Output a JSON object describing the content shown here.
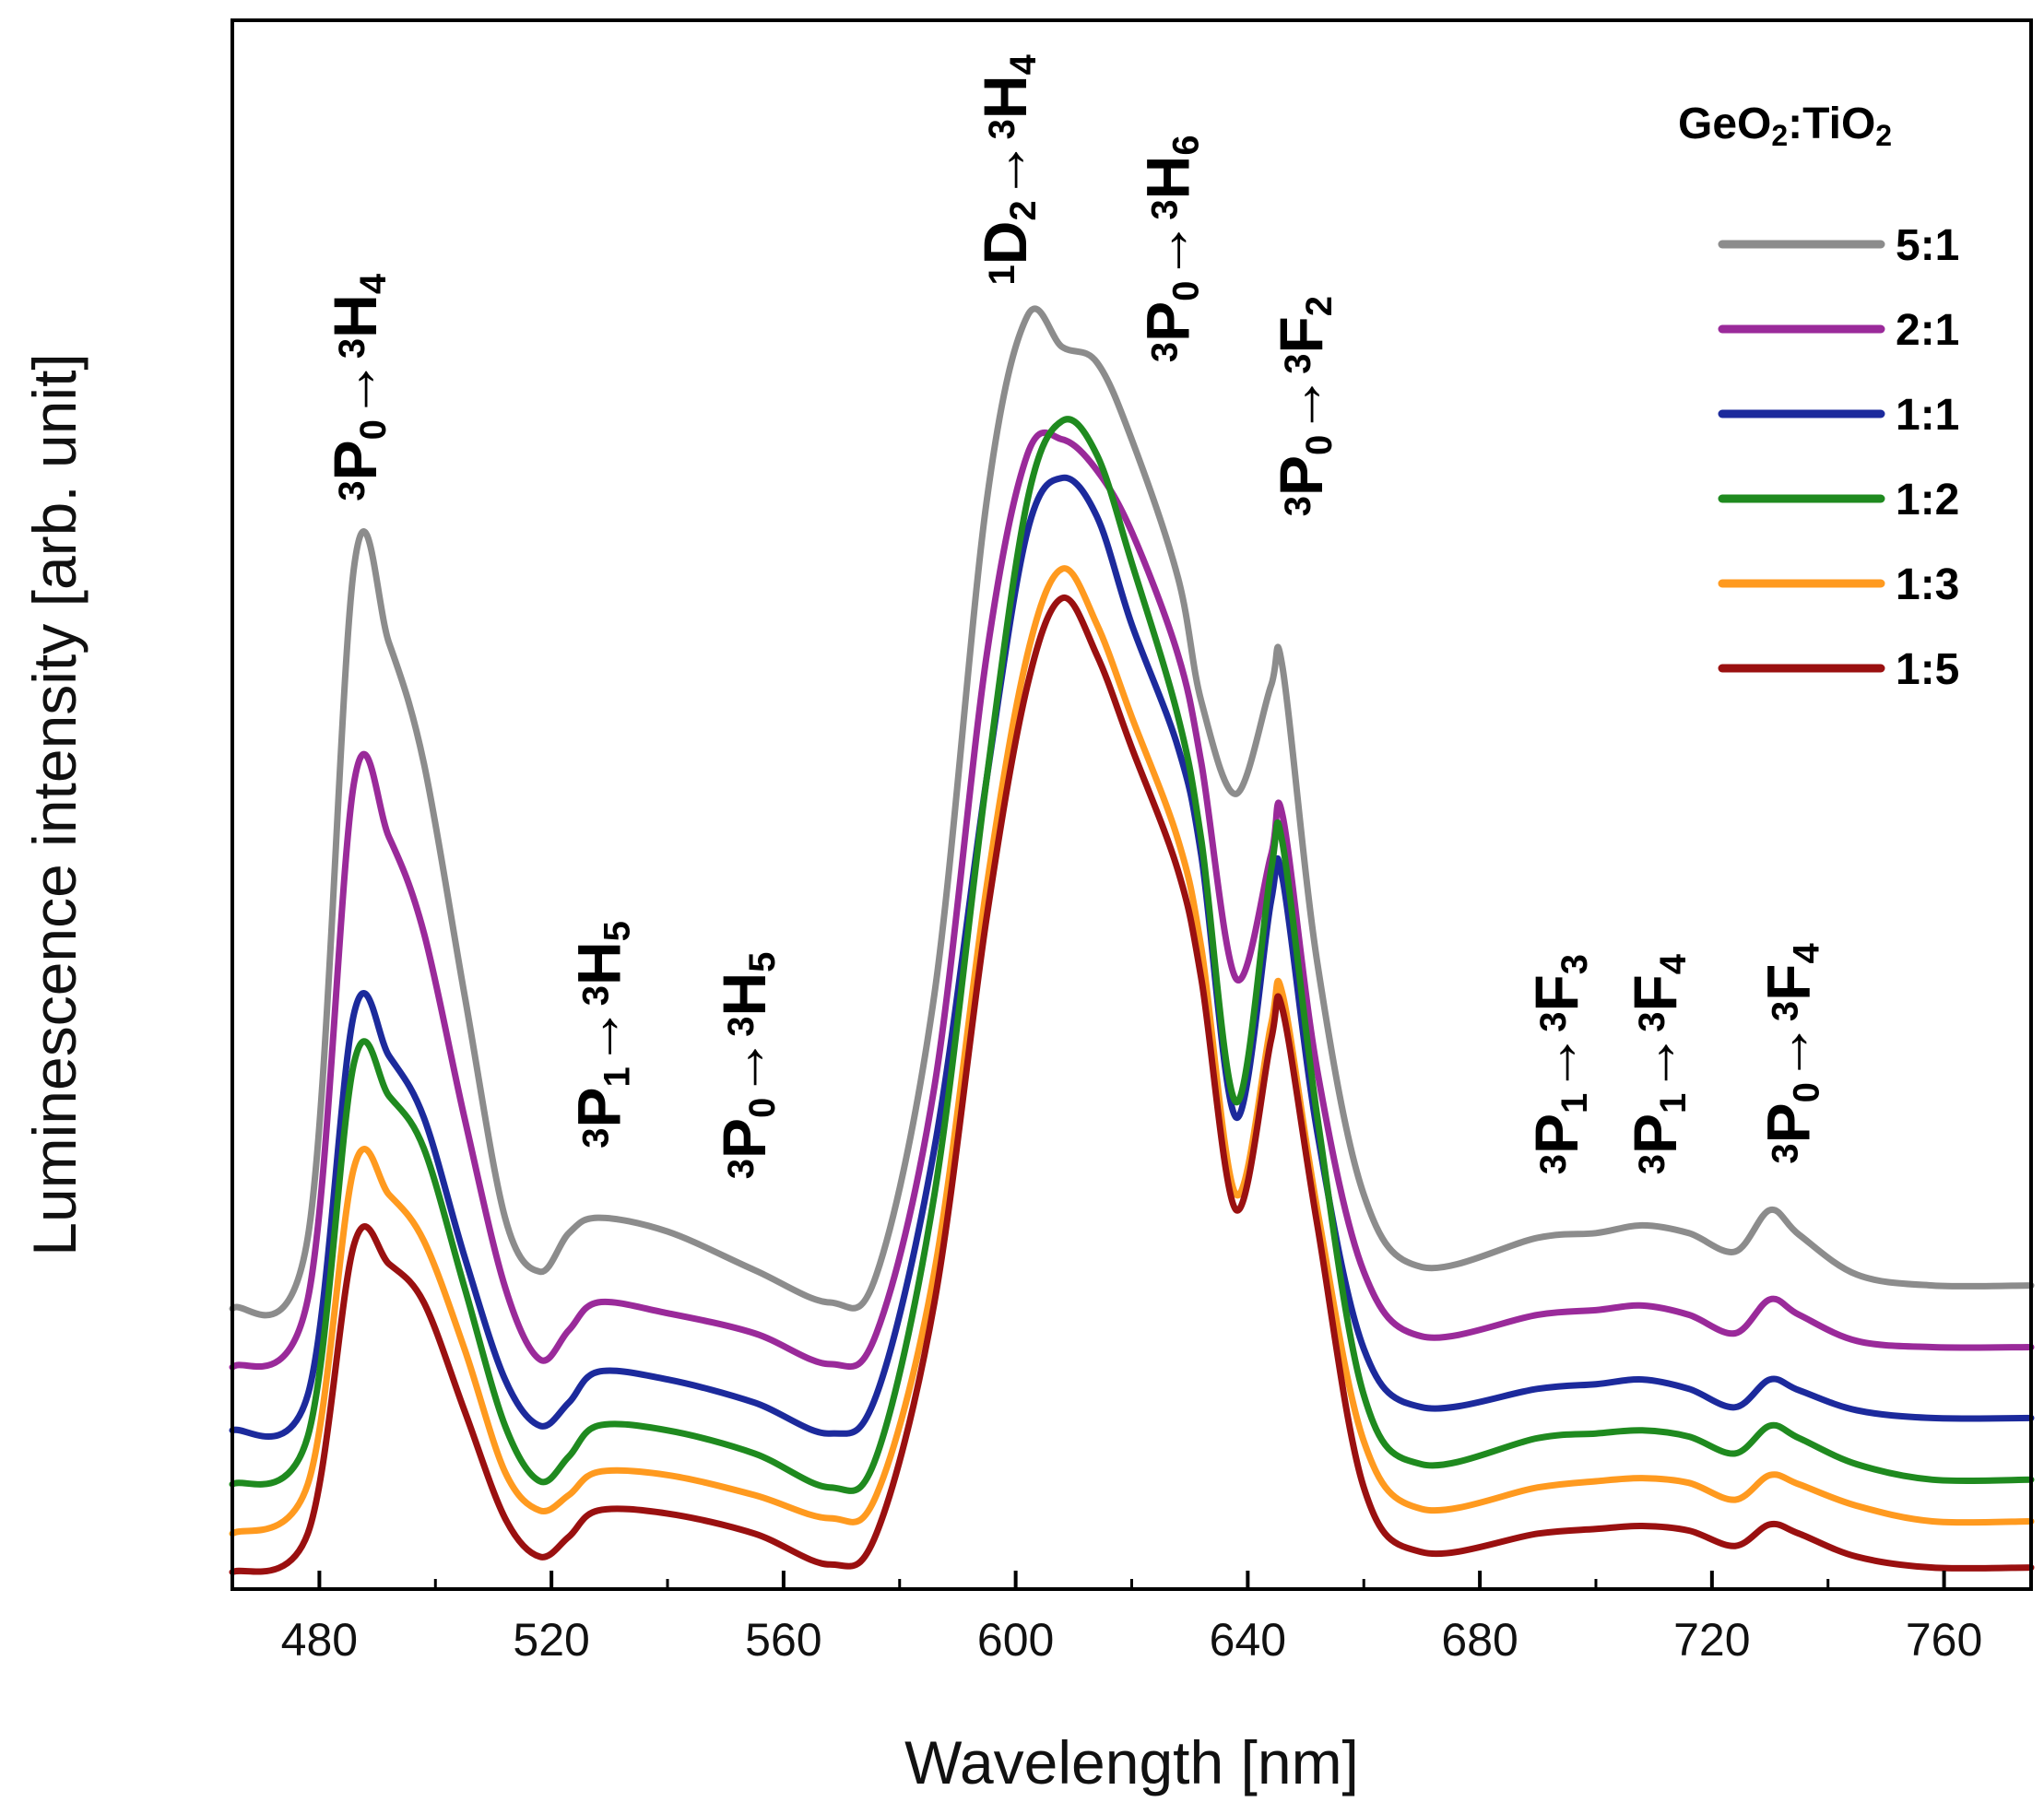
{
  "chart_data": {
    "type": "line",
    "title": "",
    "xlabel": "Wavelength [nm]",
    "ylabel": "Luminescence intensity [arb. unit]",
    "xlim": [
      465,
      775
    ],
    "ylim": [
      0,
      1
    ],
    "xticks": [
      480,
      520,
      560,
      600,
      640,
      680,
      720,
      760
    ],
    "grid": false,
    "legend": {
      "title_main": "GeO",
      "title_sub1": "2",
      "title_mid": ":TiO",
      "title_sub2": "2",
      "position": "top-right"
    },
    "series": [
      {
        "name": "5:1",
        "color": "#8c8c8c",
        "points": [
          [
            465,
            0.176
          ],
          [
            478,
            0.222
          ],
          [
            486,
            0.658
          ],
          [
            492,
            0.608
          ],
          [
            498,
            0.53
          ],
          [
            505,
            0.38
          ],
          [
            512,
            0.235
          ],
          [
            518,
            0.2
          ],
          [
            523,
            0.225
          ],
          [
            528,
            0.235
          ],
          [
            540,
            0.226
          ],
          [
            555,
            0.201
          ],
          [
            568,
            0.18
          ],
          [
            576,
            0.198
          ],
          [
            586,
            0.38
          ],
          [
            595,
            0.7
          ],
          [
            602,
            0.82
          ],
          [
            608,
            0.8
          ],
          [
            614,
            0.79
          ],
          [
            620,
            0.74
          ],
          [
            628,
            0.65
          ],
          [
            632,
            0.57
          ],
          [
            638,
            0.51
          ],
          [
            644,
            0.58
          ],
          [
            646,
            0.592
          ],
          [
            652,
            0.4
          ],
          [
            660,
            0.25
          ],
          [
            670,
            0.203
          ],
          [
            690,
            0.222
          ],
          [
            700,
            0.225
          ],
          [
            708,
            0.23
          ],
          [
            716,
            0.225
          ],
          [
            724,
            0.213
          ],
          [
            730,
            0.24
          ],
          [
            735,
            0.224
          ],
          [
            745,
            0.198
          ],
          [
            758,
            0.191
          ],
          [
            775,
            0.191
          ]
        ]
      },
      {
        "name": "2:1",
        "color": "#9a2a9a",
        "points": [
          [
            465,
            0.138
          ],
          [
            478,
            0.182
          ],
          [
            486,
            0.518
          ],
          [
            492,
            0.482
          ],
          [
            498,
            0.42
          ],
          [
            505,
            0.3
          ],
          [
            512,
            0.19
          ],
          [
            518,
            0.143
          ],
          [
            523,
            0.162
          ],
          [
            528,
            0.18
          ],
          [
            540,
            0.173
          ],
          [
            555,
            0.16
          ],
          [
            568,
            0.14
          ],
          [
            576,
            0.16
          ],
          [
            586,
            0.32
          ],
          [
            595,
            0.6
          ],
          [
            602,
            0.73
          ],
          [
            608,
            0.74
          ],
          [
            614,
            0.72
          ],
          [
            620,
            0.68
          ],
          [
            628,
            0.6
          ],
          [
            632,
            0.53
          ],
          [
            638,
            0.39
          ],
          [
            644,
            0.47
          ],
          [
            646,
            0.496
          ],
          [
            652,
            0.33
          ],
          [
            660,
            0.2
          ],
          [
            670,
            0.158
          ],
          [
            690,
            0.172
          ],
          [
            700,
            0.175
          ],
          [
            708,
            0.178
          ],
          [
            716,
            0.172
          ],
          [
            724,
            0.16
          ],
          [
            730,
            0.182
          ],
          [
            735,
            0.172
          ],
          [
            745,
            0.155
          ],
          [
            758,
            0.151
          ],
          [
            775,
            0.151
          ]
        ]
      },
      {
        "name": "1:1",
        "color": "#1c2a9c",
        "points": [
          [
            465,
            0.097
          ],
          [
            478,
            0.12
          ],
          [
            486,
            0.368
          ],
          [
            492,
            0.34
          ],
          [
            498,
            0.3
          ],
          [
            505,
            0.21
          ],
          [
            512,
            0.13
          ],
          [
            518,
            0.1
          ],
          [
            523,
            0.115
          ],
          [
            528,
            0.135
          ],
          [
            540,
            0.13
          ],
          [
            555,
            0.115
          ],
          [
            568,
            0.095
          ],
          [
            576,
            0.12
          ],
          [
            586,
            0.28
          ],
          [
            595,
            0.52
          ],
          [
            602,
            0.68
          ],
          [
            608,
            0.715
          ],
          [
            614,
            0.69
          ],
          [
            620,
            0.62
          ],
          [
            628,
            0.54
          ],
          [
            632,
            0.47
          ],
          [
            638,
            0.3
          ],
          [
            644,
            0.44
          ],
          [
            646,
            0.455
          ],
          [
            652,
            0.29
          ],
          [
            660,
            0.15
          ],
          [
            670,
            0.112
          ],
          [
            690,
            0.124
          ],
          [
            700,
            0.127
          ],
          [
            708,
            0.13
          ],
          [
            716,
            0.124
          ],
          [
            724,
            0.112
          ],
          [
            730,
            0.13
          ],
          [
            735,
            0.123
          ],
          [
            745,
            0.11
          ],
          [
            758,
            0.105
          ],
          [
            775,
            0.105
          ]
        ]
      },
      {
        "name": "1:2",
        "color": "#1f8a1f",
        "points": [
          [
            465,
            0.062
          ],
          [
            478,
            0.093
          ],
          [
            486,
            0.336
          ],
          [
            492,
            0.314
          ],
          [
            498,
            0.28
          ],
          [
            505,
            0.19
          ],
          [
            512,
            0.1
          ],
          [
            518,
            0.064
          ],
          [
            523,
            0.08
          ],
          [
            528,
            0.1
          ],
          [
            540,
            0.097
          ],
          [
            555,
            0.082
          ],
          [
            568,
            0.06
          ],
          [
            576,
            0.08
          ],
          [
            586,
            0.25
          ],
          [
            595,
            0.52
          ],
          [
            602,
            0.7
          ],
          [
            608,
            0.752
          ],
          [
            614,
            0.73
          ],
          [
            620,
            0.66
          ],
          [
            628,
            0.56
          ],
          [
            632,
            0.48
          ],
          [
            638,
            0.31
          ],
          [
            644,
            0.46
          ],
          [
            646,
            0.478
          ],
          [
            652,
            0.3
          ],
          [
            660,
            0.12
          ],
          [
            670,
            0.075
          ],
          [
            690,
            0.092
          ],
          [
            700,
            0.095
          ],
          [
            708,
            0.097
          ],
          [
            716,
            0.093
          ],
          [
            724,
            0.082
          ],
          [
            730,
            0.1
          ],
          [
            735,
            0.092
          ],
          [
            745,
            0.075
          ],
          [
            758,
            0.065
          ],
          [
            775,
            0.065
          ]
        ]
      },
      {
        "name": "1:3",
        "color": "#ff9a1f",
        "points": [
          [
            465,
            0.03
          ],
          [
            478,
            0.062
          ],
          [
            486,
            0.268
          ],
          [
            492,
            0.25
          ],
          [
            498,
            0.22
          ],
          [
            505,
            0.15
          ],
          [
            512,
            0.07
          ],
          [
            518,
            0.045
          ],
          [
            523,
            0.055
          ],
          [
            528,
            0.07
          ],
          [
            540,
            0.068
          ],
          [
            555,
            0.055
          ],
          [
            568,
            0.04
          ],
          [
            576,
            0.055
          ],
          [
            586,
            0.2
          ],
          [
            595,
            0.45
          ],
          [
            602,
            0.6
          ],
          [
            608,
            0.656
          ],
          [
            614,
            0.62
          ],
          [
            620,
            0.56
          ],
          [
            628,
            0.48
          ],
          [
            632,
            0.41
          ],
          [
            638,
            0.25
          ],
          [
            644,
            0.36
          ],
          [
            646,
            0.38
          ],
          [
            652,
            0.24
          ],
          [
            660,
            0.09
          ],
          [
            670,
            0.046
          ],
          [
            690,
            0.06
          ],
          [
            700,
            0.064
          ],
          [
            708,
            0.066
          ],
          [
            716,
            0.063
          ],
          [
            724,
            0.052
          ],
          [
            730,
            0.068
          ],
          [
            735,
            0.062
          ],
          [
            745,
            0.048
          ],
          [
            758,
            0.038
          ],
          [
            775,
            0.038
          ]
        ]
      },
      {
        "name": "1:5",
        "color": "#9a1010",
        "points": [
          [
            465,
            0.005
          ],
          [
            478,
            0.03
          ],
          [
            486,
            0.218
          ],
          [
            492,
            0.205
          ],
          [
            498,
            0.18
          ],
          [
            505,
            0.11
          ],
          [
            512,
            0.04
          ],
          [
            518,
            0.015
          ],
          [
            523,
            0.028
          ],
          [
            528,
            0.045
          ],
          [
            540,
            0.043
          ],
          [
            555,
            0.03
          ],
          [
            568,
            0.01
          ],
          [
            576,
            0.03
          ],
          [
            586,
            0.18
          ],
          [
            595,
            0.43
          ],
          [
            602,
            0.58
          ],
          [
            608,
            0.637
          ],
          [
            614,
            0.6
          ],
          [
            620,
            0.54
          ],
          [
            628,
            0.46
          ],
          [
            632,
            0.39
          ],
          [
            638,
            0.24
          ],
          [
            644,
            0.35
          ],
          [
            646,
            0.37
          ],
          [
            652,
            0.23
          ],
          [
            660,
            0.06
          ],
          [
            670,
            0.018
          ],
          [
            690,
            0.03
          ],
          [
            700,
            0.033
          ],
          [
            708,
            0.035
          ],
          [
            716,
            0.032
          ],
          [
            724,
            0.022
          ],
          [
            730,
            0.036
          ],
          [
            735,
            0.03
          ],
          [
            745,
            0.015
          ],
          [
            758,
            0.008
          ],
          [
            775,
            0.008
          ]
        ]
      }
    ],
    "annotations": [
      {
        "id": "a1",
        "x": 486,
        "y": 0.7,
        "dx": 0,
        "dy": 0,
        "initial": "P",
        "initial_sub": "0",
        "final": "H",
        "final_sub": "4",
        "sup1": "3",
        "sup2": "3",
        "arrow": "→"
      },
      {
        "id": "a2",
        "x": 528,
        "y": 0.28,
        "dx": 0,
        "dy": 0,
        "initial": "P",
        "initial_sub": "1",
        "final": "H",
        "final_sub": "5",
        "sup1": "3",
        "sup2": "3",
        "arrow": "→"
      },
      {
        "id": "a3",
        "x": 553,
        "y": 0.26,
        "dx": 0,
        "dy": 0,
        "initial": "P",
        "initial_sub": "0",
        "final": "H",
        "final_sub": "5",
        "sup1": "3",
        "sup2": "3",
        "arrow": "→"
      },
      {
        "id": "a4",
        "x": 598,
        "y": 0.84,
        "dx": 0,
        "dy": 0,
        "initial": "D",
        "initial_sub": "2",
        "final": "H",
        "final_sub": "4",
        "sup1": "1",
        "sup2": "3",
        "arrow": "→"
      },
      {
        "id": "a5",
        "x": 626,
        "y": 0.79,
        "dx": 0,
        "dy": 0,
        "initial": "P",
        "initial_sub": "0",
        "final": "H",
        "final_sub": "6",
        "sup1": "3",
        "sup2": "3",
        "arrow": "→"
      },
      {
        "id": "a6",
        "x": 649,
        "y": 0.69,
        "dx": 0,
        "dy": 0,
        "initial": "P",
        "initial_sub": "0",
        "final": "F",
        "final_sub": "2",
        "sup1": "3",
        "sup2": "3",
        "arrow": "→"
      },
      {
        "id": "a7",
        "x": 693,
        "y": 0.263,
        "dx": 0,
        "dy": 0,
        "initial": "P",
        "initial_sub": "1",
        "final": "F",
        "final_sub": "3",
        "sup1": "3",
        "sup2": "3",
        "arrow": "→"
      },
      {
        "id": "a8",
        "x": 710,
        "y": 0.263,
        "dx": 0,
        "dy": 0,
        "initial": "P",
        "initial_sub": "1",
        "final": "F",
        "final_sub": "4",
        "sup1": "3",
        "sup2": "3",
        "arrow": "→"
      },
      {
        "id": "a9",
        "x": 733,
        "y": 0.27,
        "dx": 0,
        "dy": 0,
        "initial": "P",
        "initial_sub": "0",
        "final": "F",
        "final_sub": "4",
        "sup1": "3",
        "sup2": "3",
        "arrow": "→"
      }
    ]
  }
}
